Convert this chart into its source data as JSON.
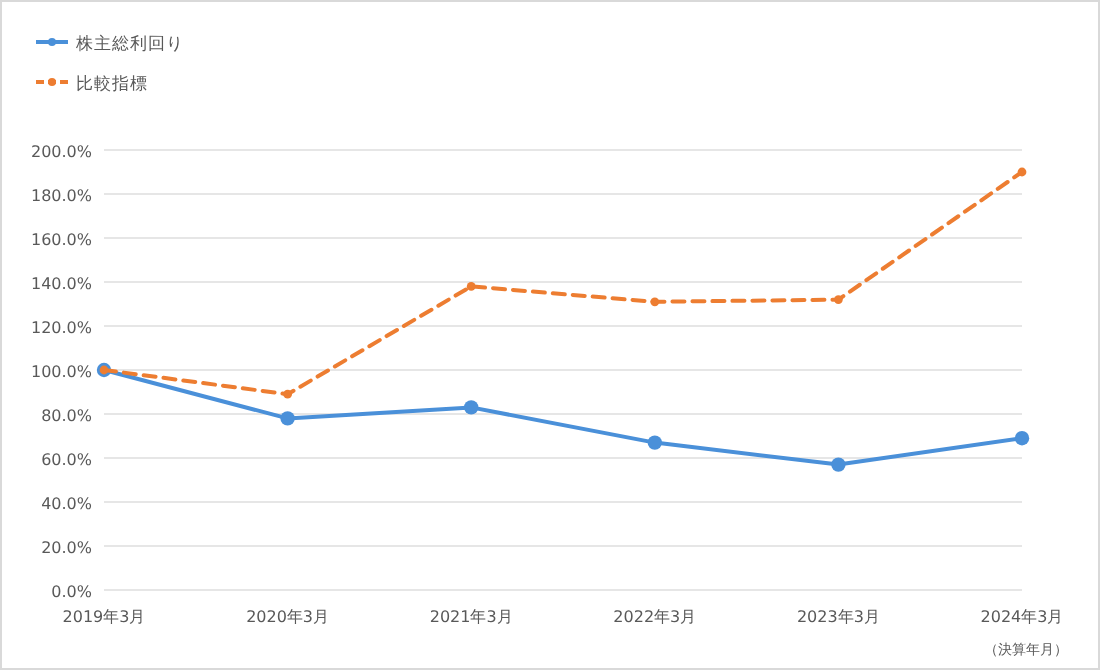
{
  "chart_data": {
    "type": "line",
    "xlabel": "（決算年月）",
    "categories": [
      "2019年3月",
      "2020年3月",
      "2021年3月",
      "2022年3月",
      "2023年3月",
      "2024年3月"
    ],
    "series": [
      {
        "name": "株主総利回り",
        "color": "#4a90d9",
        "values": [
          100,
          78,
          83,
          67,
          57,
          69
        ],
        "line_style": "solid"
      },
      {
        "name": "比較指標",
        "color": "#ed7d31",
        "values": [
          100,
          89,
          138,
          131,
          132,
          190
        ],
        "line_style": "dashed"
      }
    ],
    "ylim": [
      0,
      200
    ],
    "yticks": [
      {
        "value": 0,
        "label": "0.0%"
      },
      {
        "value": 20,
        "label": "20.0%"
      },
      {
        "value": 40,
        "label": "40.0%"
      },
      {
        "value": 60,
        "label": "60.0%"
      },
      {
        "value": 80,
        "label": "80.0%"
      },
      {
        "value": 100,
        "label": "100.0%"
      },
      {
        "value": 120,
        "label": "120.0%"
      },
      {
        "value": 140,
        "label": "140.0%"
      },
      {
        "value": 160,
        "label": "160.0%"
      },
      {
        "value": 180,
        "label": "180.0%"
      },
      {
        "value": 200,
        "label": "200.0%"
      }
    ],
    "grid": "y",
    "legend": "top left",
    "marker": "circle"
  }
}
